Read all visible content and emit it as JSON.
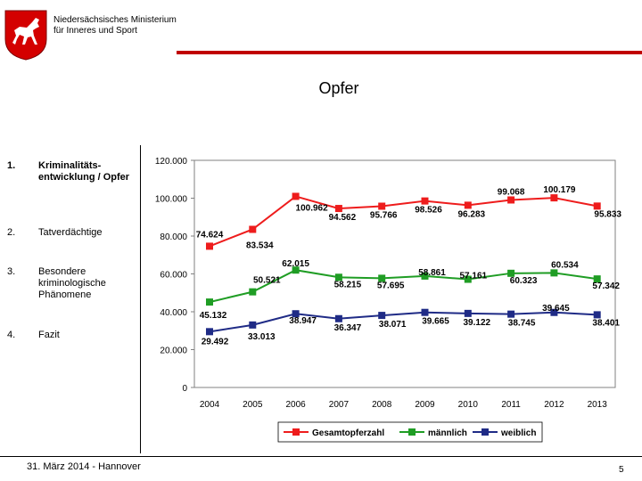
{
  "header": {
    "ministry_line1": "Niedersächsisches Ministerium",
    "ministry_line2": "für Inneres und Sport",
    "logo": "lower-saxony-horse-crest"
  },
  "page": {
    "title": "Opfer",
    "page_number": "5",
    "date": "31. März 2014 - Hannover"
  },
  "nav": [
    {
      "num": "1.",
      "text": "Kriminalitäts-entwicklung / Opfer",
      "active": true
    },
    {
      "num": "2.",
      "text": "Tatverdächtige",
      "active": false
    },
    {
      "num": "3.",
      "text": "Besondere kriminologische Phänomene",
      "active": false
    },
    {
      "num": "4.",
      "text": "Fazit",
      "active": false
    }
  ],
  "colors": {
    "accent": "#c00000",
    "series_total": "#ee1c1c",
    "series_male": "#1f9d24",
    "series_female": "#1f2b86"
  },
  "chart_data": {
    "type": "line",
    "title": "Opfer",
    "xlabel": "",
    "ylabel": "",
    "ylim": [
      0,
      120000
    ],
    "yticks": [
      0,
      20000,
      40000,
      60000,
      80000,
      100000,
      120000
    ],
    "ytick_labels": [
      "0",
      "20.000",
      "40.000",
      "60.000",
      "80.000",
      "100.000",
      "120.000"
    ],
    "grid": false,
    "legend_position": "bottom",
    "categories": [
      "2004",
      "2005",
      "2006",
      "2007",
      "2008",
      "2009",
      "2010",
      "2011",
      "2012",
      "2013"
    ],
    "series": [
      {
        "name": "Gesamtopferzahl",
        "color": "#ee1c1c",
        "values": [
          74624,
          83534,
          100962,
          94562,
          95766,
          98526,
          96283,
          99068,
          100179,
          95833
        ],
        "labels": [
          "74.624",
          "83.534",
          "100.962",
          "94.562",
          "95.766",
          "98.526",
          "96.283",
          "99.068",
          "100.179",
          "95.833"
        ]
      },
      {
        "name": "männlich",
        "color": "#1f9d24",
        "values": [
          45132,
          50521,
          62015,
          58215,
          57695,
          58861,
          57161,
          60323,
          60534,
          57342
        ],
        "labels": [
          "45.132",
          "50.521",
          "62.015",
          "58.215",
          "57.695",
          "58.861",
          "57.161",
          "60.323",
          "60.534",
          "57.342"
        ]
      },
      {
        "name": "weiblich",
        "color": "#1f2b86",
        "values": [
          29492,
          33013,
          38947,
          36347,
          38071,
          39665,
          39122,
          38745,
          39645,
          38401
        ],
        "labels": [
          "29.492",
          "33.013",
          "38.947",
          "36.347",
          "38.071",
          "39.665",
          "39.122",
          "38.745",
          "39.645",
          "38.401"
        ]
      }
    ]
  }
}
